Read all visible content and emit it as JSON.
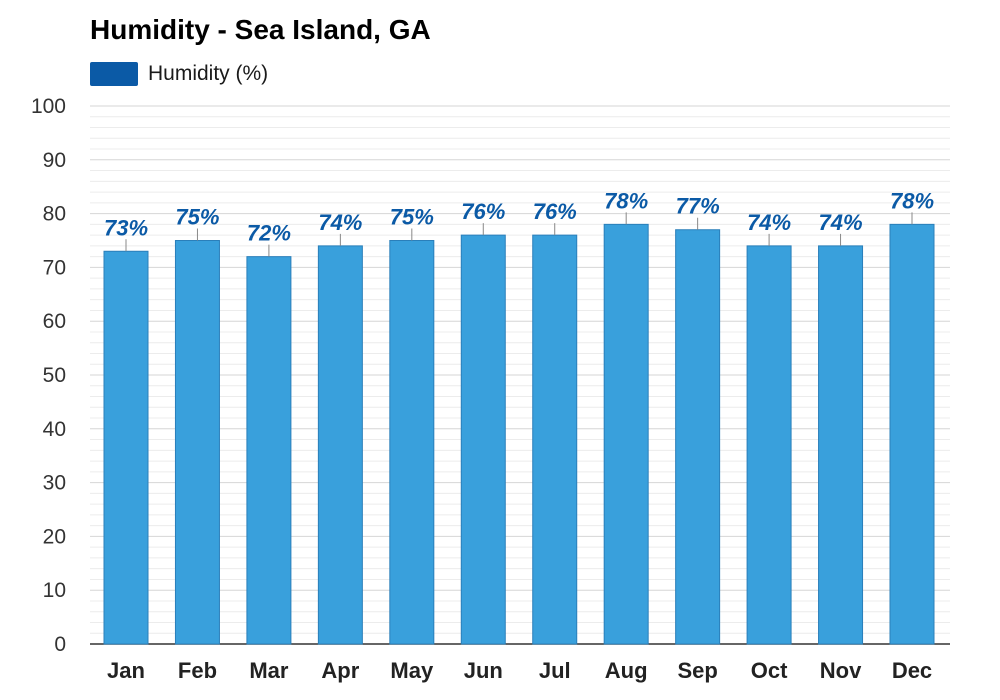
{
  "chart_data": {
    "type": "bar",
    "title": "Humidity - Sea Island, GA",
    "categories": [
      "Jan",
      "Feb",
      "Mar",
      "Apr",
      "May",
      "Jun",
      "Jul",
      "Aug",
      "Sep",
      "Oct",
      "Nov",
      "Dec"
    ],
    "series": [
      {
        "name": "Humidity (%)",
        "values": [
          73,
          75,
          72,
          74,
          75,
          76,
          76,
          78,
          77,
          74,
          74,
          78
        ],
        "labels": [
          "73%",
          "75%",
          "72%",
          "74%",
          "75%",
          "76%",
          "76%",
          "78%",
          "77%",
          "74%",
          "74%",
          "78%"
        ]
      }
    ],
    "ylim": [
      0,
      100
    ],
    "yticks": [
      0,
      10,
      20,
      30,
      40,
      50,
      60,
      70,
      80,
      90,
      100
    ],
    "xlabel": "",
    "ylabel": "",
    "grid": true,
    "legend": "top-left",
    "colors": {
      "bar": "#39a0dc",
      "bar_edge": "#2a7fba",
      "legend": "#0b5aa6",
      "label": "#0b5aa6"
    }
  }
}
